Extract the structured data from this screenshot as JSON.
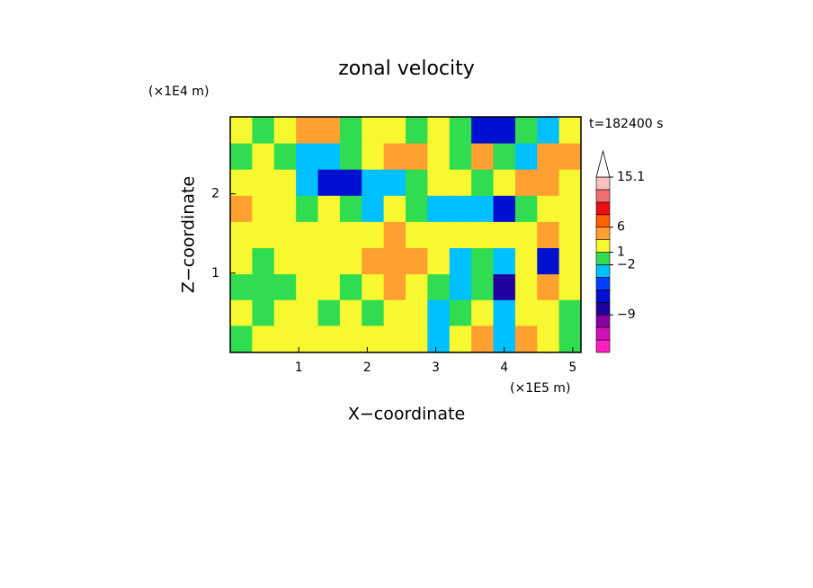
{
  "chart_data": {
    "type": "contour",
    "title": "zonal velocity",
    "x_label": "X−coordinate",
    "y_label": "Z−coordinate",
    "x_unit": "(×1E5 m)",
    "y_unit": "(×1E4 m)",
    "annotation": "t=182400 s",
    "xlim": [
      0,
      5.12
    ],
    "ylim": [
      0,
      2.97
    ],
    "xticks": [
      1,
      2,
      3,
      4,
      5
    ],
    "yticks": [
      1,
      2
    ],
    "x": [
      0.16,
      0.48,
      0.8,
      1.12,
      1.44,
      1.76,
      2.08,
      2.4,
      2.72,
      3.04,
      3.36,
      3.68,
      4.0,
      4.32,
      4.64,
      4.96
    ],
    "y": [
      2.8,
      2.47,
      2.14,
      1.81,
      1.48,
      1.15,
      0.82,
      0.5,
      0.17
    ],
    "z": [
      [
        1.5,
        0,
        1.5,
        3.5,
        3.5,
        0,
        1.5,
        1.5,
        0,
        1.5,
        0,
        -5,
        -5,
        0,
        -2.5,
        1.5
      ],
      [
        0,
        1.5,
        0,
        -2.5,
        -2.5,
        0,
        1.5,
        3.5,
        3.5,
        1.5,
        0,
        3.5,
        0,
        -2.5,
        3.5,
        3.5
      ],
      [
        1.5,
        1.5,
        1.5,
        -2.5,
        -5,
        -5,
        -2.5,
        -2.5,
        0,
        1.5,
        1.5,
        0,
        1.5,
        3.5,
        3.5,
        1.5
      ],
      [
        3.5,
        1.5,
        1.5,
        0,
        1.5,
        0,
        -2.5,
        1.5,
        0,
        -2.5,
        -2.5,
        -2.5,
        -5,
        0,
        1.5,
        1.5
      ],
      [
        1.5,
        1.5,
        1.5,
        1.5,
        1.5,
        1.5,
        1.5,
        3.5,
        1.5,
        1.5,
        1.5,
        1.5,
        1.5,
        1.5,
        3.5,
        1.5
      ],
      [
        1.5,
        0,
        1.5,
        1.5,
        1.5,
        1.5,
        3.5,
        3.5,
        3.5,
        1.5,
        -2.5,
        0,
        -2.5,
        1.5,
        -5,
        1.5
      ],
      [
        0,
        0,
        0,
        1.5,
        1.5,
        0,
        1.5,
        3.5,
        1.5,
        0,
        -2.5,
        0,
        -7,
        1.5,
        3.5,
        1.5
      ],
      [
        1.5,
        0,
        1.5,
        1.5,
        0,
        1.5,
        0,
        1.5,
        1.5,
        -2.5,
        0,
        1.5,
        -2.5,
        1.5,
        1.5,
        0
      ],
      [
        0,
        1.5,
        1.5,
        1.5,
        1.5,
        1.5,
        1.5,
        1.5,
        1.5,
        -2.5,
        1.5,
        3.5,
        -2.5,
        3.5,
        1.5,
        0
      ]
    ],
    "colorbar": {
      "levels": [
        -15,
        -12,
        -9,
        -6,
        -4,
        -3,
        -2,
        1,
        3,
        6,
        8,
        10,
        12,
        15.1
      ],
      "colors": [
        "#ff20c0",
        "#d010b8",
        "#8a00a0",
        "#2000a0",
        "#0010d0",
        "#0040ff",
        "#00c0ff",
        "#30dd50",
        "#f8f830",
        "#ffa030",
        "#ff6000",
        "#e81010",
        "#f07070",
        "#f8c0c0",
        "#ffffff"
      ],
      "ticks": [
        15.1,
        6,
        1,
        {
          "value": -2,
          "label": "−2"
        },
        {
          "value": -9,
          "label": "−9"
        }
      ]
    }
  }
}
